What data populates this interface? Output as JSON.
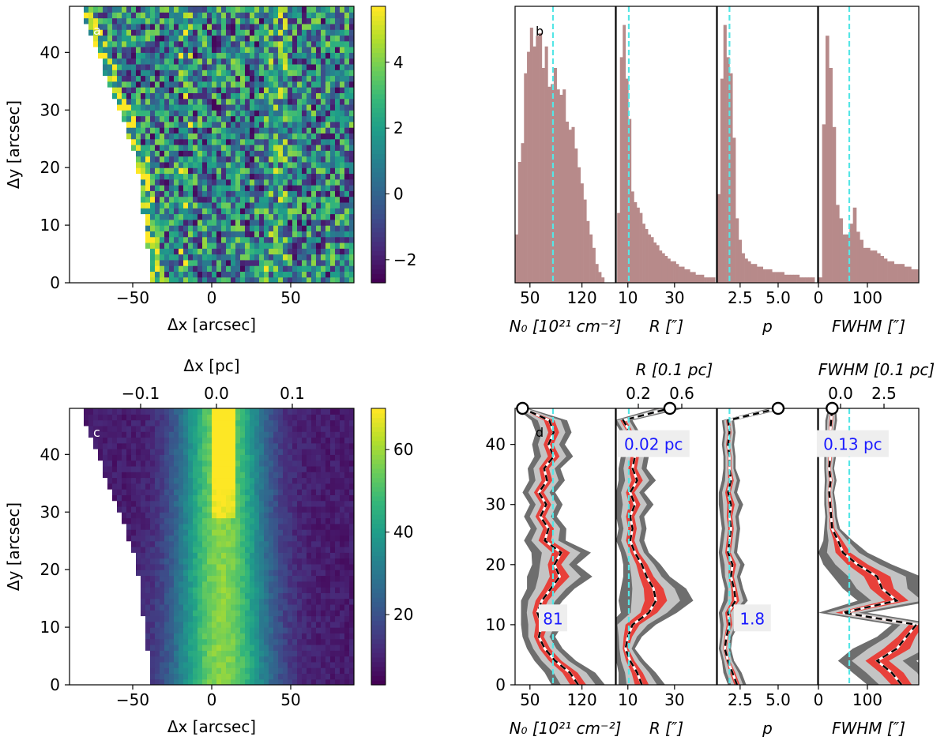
{
  "chart_data": [
    {
      "panel": "a",
      "type": "heatmap",
      "label": "a",
      "xlabel": "Δx [arcsec]",
      "ylabel": "Δy [arcsec]",
      "xlim": [
        -90,
        90
      ],
      "ylim": [
        0,
        48
      ],
      "xticks": [
        "−50",
        "0",
        "50"
      ],
      "xtick_values": [
        -50,
        0,
        50
      ],
      "yticks": [
        "0",
        "10",
        "20",
        "30",
        "40"
      ],
      "ytick_values": [
        0,
        10,
        20,
        30,
        40
      ],
      "colorbar_ticks": [
        "−2",
        "0",
        "2",
        "4"
      ],
      "colorbar_values": [
        -2,
        0,
        2,
        4
      ],
      "colorbar_range": [
        -2.7,
        5.7
      ],
      "colormap": "viridis"
    },
    {
      "panel": "b",
      "type": "bar",
      "label": "b",
      "bar_color": "#b78a8a",
      "line_color": "#55e6e6",
      "subplots": [
        {
          "xlabel": "N₀ [10²¹ cm⁻²]",
          "xlim": [
            30,
            165
          ],
          "xticks": [
            "50",
            "120"
          ],
          "xtick_values": [
            50,
            120
          ],
          "vline": 81,
          "hist": [
            [
              32,
              0.18
            ],
            [
              36,
              0.45
            ],
            [
              40,
              0.52
            ],
            [
              44,
              0.78
            ],
            [
              48,
              0.86
            ],
            [
              52,
              0.95
            ],
            [
              56,
              0.88
            ],
            [
              60,
              0.92
            ],
            [
              64,
              0.93
            ],
            [
              68,
              0.8
            ],
            [
              72,
              0.88
            ],
            [
              76,
              0.73
            ],
            [
              80,
              0.74
            ],
            [
              84,
              0.8
            ],
            [
              88,
              0.72
            ],
            [
              92,
              0.7
            ],
            [
              96,
              0.72
            ],
            [
              100,
              0.6
            ],
            [
              104,
              0.57
            ],
            [
              108,
              0.58
            ],
            [
              112,
              0.5
            ],
            [
              116,
              0.43
            ],
            [
              120,
              0.37
            ],
            [
              124,
              0.31
            ],
            [
              128,
              0.23
            ],
            [
              132,
              0.18
            ],
            [
              136,
              0.13
            ],
            [
              140,
              0.07
            ],
            [
              144,
              0.04
            ],
            [
              148,
              0.02
            ]
          ]
        },
        {
          "xlabel": "R [″]",
          "xlim": [
            5,
            48
          ],
          "xticks": [
            "10",
            "30"
          ],
          "xtick_values": [
            10,
            30
          ],
          "vline": 10.4,
          "hist": [
            [
              6,
              0.26
            ],
            [
              7.2,
              0.84
            ],
            [
              8.4,
              0.96
            ],
            [
              9.6,
              0.76
            ],
            [
              10.8,
              0.61
            ],
            [
              12,
              0.34
            ],
            [
              13.2,
              0.3
            ],
            [
              14.4,
              0.28
            ],
            [
              15.6,
              0.26
            ],
            [
              16.8,
              0.22
            ],
            [
              18,
              0.2
            ],
            [
              19.2,
              0.18
            ],
            [
              20.4,
              0.17
            ],
            [
              21.6,
              0.15
            ],
            [
              22.8,
              0.14
            ],
            [
              24,
              0.12
            ],
            [
              25.2,
              0.11
            ],
            [
              26.4,
              0.1
            ],
            [
              27.6,
              0.09
            ],
            [
              28.8,
              0.08
            ],
            [
              30,
              0.08
            ],
            [
              31.2,
              0.07
            ],
            [
              32.4,
              0.06
            ],
            [
              33.6,
              0.06
            ],
            [
              34.8,
              0.05
            ],
            [
              36,
              0.05
            ],
            [
              37.2,
              0.04
            ],
            [
              38.4,
              0.04
            ],
            [
              39.6,
              0.03
            ],
            [
              40.8,
              0.03
            ],
            [
              42,
              0.03
            ],
            [
              43.2,
              0.02
            ],
            [
              44.4,
              0.02
            ],
            [
              45.6,
              0.02
            ],
            [
              46.8,
              0.02
            ]
          ]
        },
        {
          "xlabel": "p",
          "xlim": [
            1.0,
            7.6
          ],
          "xticks": [
            "2.5",
            "5.0"
          ],
          "xtick_values": [
            2.5,
            5.0
          ],
          "vline": 1.8,
          "hist": [
            [
              1.1,
              0.33
            ],
            [
              1.3,
              0.76
            ],
            [
              1.5,
              0.96
            ],
            [
              1.7,
              0.84
            ],
            [
              1.9,
              0.78
            ],
            [
              2.1,
              0.54
            ],
            [
              2.3,
              0.24
            ],
            [
              2.5,
              0.16
            ],
            [
              2.7,
              0.11
            ],
            [
              2.9,
              0.09
            ],
            [
              3.1,
              0.08
            ],
            [
              3.3,
              0.07
            ],
            [
              3.5,
              0.07
            ],
            [
              3.7,
              0.06
            ],
            [
              3.9,
              0.06
            ],
            [
              4.1,
              0.05
            ],
            [
              4.3,
              0.05
            ],
            [
              4.5,
              0.05
            ],
            [
              4.7,
              0.04
            ],
            [
              4.9,
              0.04
            ],
            [
              5.1,
              0.04
            ],
            [
              5.3,
              0.04
            ],
            [
              5.5,
              0.03
            ],
            [
              5.7,
              0.03
            ],
            [
              5.9,
              0.03
            ],
            [
              6.1,
              0.03
            ],
            [
              6.3,
              0.03
            ],
            [
              6.5,
              0.02
            ],
            [
              6.7,
              0.02
            ],
            [
              6.9,
              0.02
            ],
            [
              7.1,
              0.02
            ],
            [
              7.3,
              0.02
            ]
          ]
        },
        {
          "xlabel": "FWHM [″]",
          "xlim": [
            0,
            205
          ],
          "xticks": [
            "0",
            "100"
          ],
          "xtick_values": [
            0,
            100
          ],
          "vline": 63,
          "hist": [
            [
              4,
              0.02
            ],
            [
              11,
              0.59
            ],
            [
              18,
              0.92
            ],
            [
              25,
              0.8
            ],
            [
              32,
              0.58
            ],
            [
              39,
              0.29
            ],
            [
              46,
              0.24
            ],
            [
              53,
              0.18
            ],
            [
              60,
              0.18
            ],
            [
              67,
              0.22
            ],
            [
              74,
              0.28
            ],
            [
              81,
              0.19
            ],
            [
              88,
              0.16
            ],
            [
              95,
              0.13
            ],
            [
              102,
              0.13
            ],
            [
              109,
              0.12
            ],
            [
              116,
              0.12
            ],
            [
              123,
              0.11
            ],
            [
              130,
              0.1
            ],
            [
              137,
              0.09
            ],
            [
              144,
              0.08
            ],
            [
              151,
              0.08
            ],
            [
              158,
              0.07
            ],
            [
              165,
              0.07
            ],
            [
              172,
              0.07
            ],
            [
              179,
              0.06
            ],
            [
              186,
              0.06
            ],
            [
              193,
              0.05
            ],
            [
              200,
              0.05
            ]
          ]
        }
      ]
    },
    {
      "panel": "c",
      "type": "heatmap",
      "label": "c",
      "xlabel": "Δx [arcsec]",
      "ylabel": "Δy [arcsec]",
      "top_xlabel": "Δx [pc]",
      "top_xticks": [
        "−0.1",
        "0.0",
        "0.1"
      ],
      "top_xtick_values": [
        -0.1,
        0.0,
        0.1
      ],
      "xlim": [
        -90,
        90
      ],
      "ylim": [
        0,
        48
      ],
      "xticks": [
        "−50",
        "0",
        "50"
      ],
      "xtick_values": [
        -50,
        0,
        50
      ],
      "yticks": [
        "0",
        "10",
        "20",
        "30",
        "40"
      ],
      "ytick_values": [
        0,
        10,
        20,
        30,
        40
      ],
      "colorbar_ticks": [
        "20",
        "40",
        "60"
      ],
      "colorbar_values": [
        20,
        40,
        60
      ],
      "colorbar_range": [
        3,
        70
      ],
      "colormap": "viridis"
    },
    {
      "panel": "d",
      "type": "line",
      "label": "d",
      "ylim": [
        0,
        46
      ],
      "yticks": [
        "0",
        "10",
        "20",
        "30",
        "40"
      ],
      "ytick_values": [
        0,
        10,
        20,
        30,
        40
      ],
      "y": [
        0,
        2,
        4,
        6,
        8,
        10,
        12,
        14,
        16,
        18,
        20,
        22,
        24,
        26,
        28,
        30,
        32,
        34,
        36,
        38,
        40,
        42,
        44,
        46
      ],
      "subplots": [
        {
          "xlabel": "N₀ [10²¹ cm⁻²]",
          "xlim": [
            30,
            165
          ],
          "xticks": [
            "50",
            "120"
          ],
          "xtick_values": [
            50,
            120
          ],
          "vline": 81,
          "annotation": "81",
          "annotation_pos": [
            81,
            11
          ],
          "median": [
            115,
            104,
            84,
            70,
            62,
            66,
            60,
            66,
            78,
            90,
            83,
            92,
            70,
            75,
            64,
            72,
            62,
            73,
            69,
            82,
            75,
            82,
            76,
            40
          ],
          "spread": [
            18,
            17,
            14,
            12,
            11,
            14,
            11,
            14,
            16,
            22,
            15,
            20,
            14,
            12,
            11,
            11,
            11,
            12,
            11,
            13,
            11,
            12,
            12,
            4
          ]
        },
        {
          "xlabel": "R [″]",
          "xlim": [
            5,
            48
          ],
          "xticks": [
            "10",
            "30"
          ],
          "xtick_values": [
            10,
            30
          ],
          "vline": 10.4,
          "annotation": "0.02 pc",
          "annotation_pos": [
            21,
            40
          ],
          "top_xlabel": "R [0.1 pc]",
          "top_xticks": [
            "0.2",
            "0.6"
          ],
          "top_xtick_values": [
            0.2,
            0.6
          ],
          "median": [
            16,
            14,
            11,
            9,
            10,
            12,
            19,
            22,
            21,
            18,
            16,
            13,
            11,
            12,
            11,
            13,
            11,
            14,
            12,
            13,
            11,
            11,
            8,
            28
          ],
          "spread": [
            5,
            4,
            3,
            2,
            3,
            5,
            6,
            8,
            7,
            5,
            4,
            3,
            3,
            3,
            3,
            4,
            3,
            4,
            3,
            3,
            2,
            2,
            2,
            3
          ]
        },
        {
          "xlabel": "p",
          "xlim": [
            1.0,
            7.6
          ],
          "xticks": [
            "2.5",
            "5.0"
          ],
          "xtick_values": [
            2.5,
            5.0
          ],
          "vline": 1.8,
          "annotation": "1.8",
          "annotation_pos": [
            3.3,
            11
          ],
          "median": [
            2.3,
            2.0,
            1.7,
            1.5,
            1.6,
            1.8,
            1.7,
            2.2,
            2.1,
            1.9,
            2.0,
            1.7,
            1.8,
            1.9,
            1.8,
            1.9,
            1.7,
            1.9,
            1.8,
            1.8,
            1.7,
            1.8,
            1.7,
            5.0
          ],
          "spread": [
            0.3,
            0.3,
            0.2,
            0.2,
            0.2,
            0.3,
            0.3,
            0.4,
            0.3,
            0.3,
            0.4,
            0.3,
            0.3,
            0.3,
            0.3,
            0.4,
            0.3,
            0.3,
            0.2,
            0.2,
            0.2,
            0.2,
            0.2,
            0.3
          ]
        },
        {
          "xlabel": "FWHM [″]",
          "xlim": [
            0,
            205
          ],
          "xticks": [
            "0",
            "100"
          ],
          "xtick_values": [
            0,
            100
          ],
          "vline": 63,
          "annotation": "0.13 pc",
          "annotation_pos": [
            70,
            40
          ],
          "top_xlabel": "FWHM [0.1 pc]",
          "top_xticks": [
            "0.0",
            "2.5"
          ],
          "top_xtick_values": [
            0.0,
            2.5
          ],
          "median": [
            170,
            150,
            120,
            160,
            180,
            200,
            50,
            160,
            130,
            120,
            80,
            50,
            40,
            28,
            26,
            24,
            22,
            25,
            22,
            24,
            22,
            24,
            26,
            28
          ],
          "spread": [
            35,
            40,
            40,
            45,
            30,
            25,
            25,
            40,
            40,
            45,
            35,
            25,
            15,
            8,
            6,
            6,
            5,
            6,
            5,
            6,
            5,
            5,
            6,
            4
          ]
        }
      ]
    }
  ]
}
